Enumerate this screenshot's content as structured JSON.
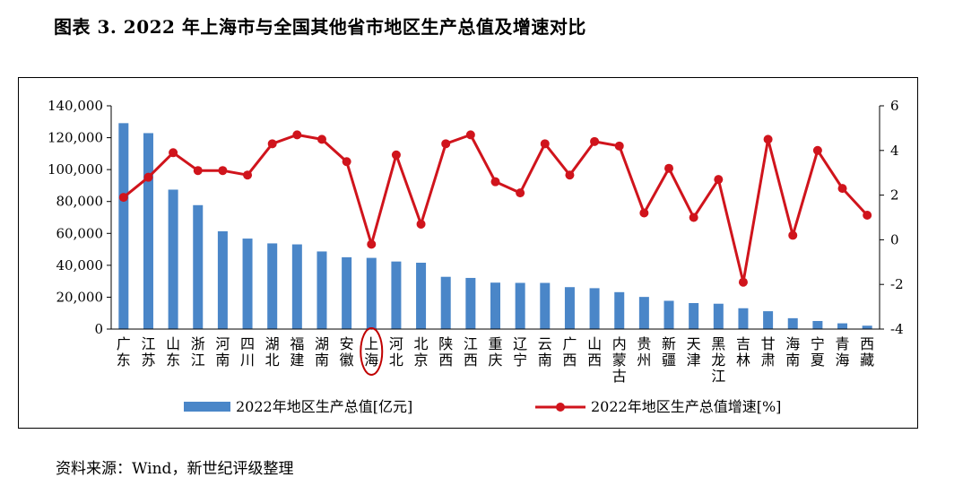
{
  "figure": {
    "title": "图表 3. 2022 年上海市与全国其他省市地区生产总值及增速对比",
    "source": "资料来源：Wind，新世纪评级整理"
  },
  "colors": {
    "bar": "#4a86c8",
    "line": "#d0141c",
    "highlight_circle": "#c00000"
  },
  "chart_data": {
    "type": "bar",
    "categories": [
      "广东",
      "江苏",
      "山东",
      "浙江",
      "河南",
      "四川",
      "湖北",
      "福建",
      "湖南",
      "安徽",
      "上海",
      "河北",
      "北京",
      "陕西",
      "江西",
      "重庆",
      "辽宁",
      "云南",
      "广西",
      "山西",
      "内蒙古",
      "贵州",
      "新疆",
      "天津",
      "黑龙江",
      "吉林",
      "甘肃",
      "海南",
      "宁夏",
      "青海",
      "西藏"
    ],
    "series": [
      {
        "name": "2022年地区生产总值[亿元]",
        "type": "bar",
        "axis": "left",
        "values": [
          129119,
          122876,
          87435,
          77715,
          61345,
          56750,
          53735,
          53110,
          48670,
          45045,
          44653,
          42370,
          41611,
          32773,
          32075,
          29129,
          28975,
          28954,
          26301,
          25643,
          23159,
          20165,
          17741,
          16311,
          15901,
          13070,
          11202,
          6818,
          5070,
          3610,
          2133
        ]
      },
      {
        "name": "2022年地区生产总值增速[%]",
        "type": "line",
        "axis": "right",
        "values": [
          1.9,
          2.8,
          3.9,
          3.1,
          3.1,
          2.9,
          4.3,
          4.7,
          4.5,
          3.5,
          -0.2,
          3.8,
          0.7,
          4.3,
          4.7,
          2.6,
          2.1,
          4.3,
          2.9,
          4.4,
          4.2,
          1.2,
          3.2,
          1.0,
          2.7,
          -1.9,
          4.5,
          0.2,
          4.0,
          2.3,
          1.1
        ]
      }
    ],
    "y_left": {
      "range": [
        0,
        140000
      ],
      "ticks": [
        "0",
        "20,000",
        "40,000",
        "60,000",
        "80,000",
        "100,000",
        "120,000",
        "140,000"
      ],
      "tick_values": [
        0,
        20000,
        40000,
        60000,
        80000,
        100000,
        120000,
        140000
      ]
    },
    "y_right": {
      "range": [
        -4,
        6
      ],
      "ticks": [
        "-4",
        "-2",
        "0",
        "2",
        "4",
        "6"
      ],
      "tick_values": [
        -4,
        -2,
        0,
        2,
        4,
        6
      ]
    },
    "highlight_category": "上海",
    "legend_position": "bottom",
    "grid": false
  }
}
